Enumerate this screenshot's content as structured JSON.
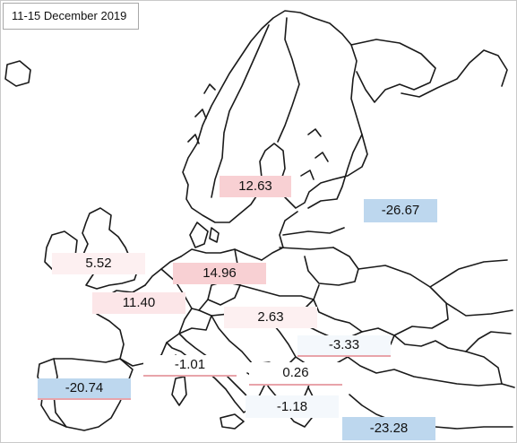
{
  "map": {
    "period_label": "11-15  December 2019",
    "colors": {
      "land_outline": "#1a1a1a",
      "positive_strong": "#f8d0d3",
      "positive_light": "#fce6e8",
      "negative_strong": "#bdd7ee",
      "negative_light": "#f4f8fc"
    },
    "values": {
      "finland": "12.63",
      "russia": "-26.67",
      "uk_ireland": "5.52",
      "poland": "14.96",
      "france_benelux": "11.40",
      "hungary_austria": "2.63",
      "romania_bulgaria": "-3.33",
      "italy": "-1.01",
      "balkans": "0.26",
      "iberia": "-20.74",
      "greece": "-1.18",
      "turkey": "-23.28"
    }
  }
}
